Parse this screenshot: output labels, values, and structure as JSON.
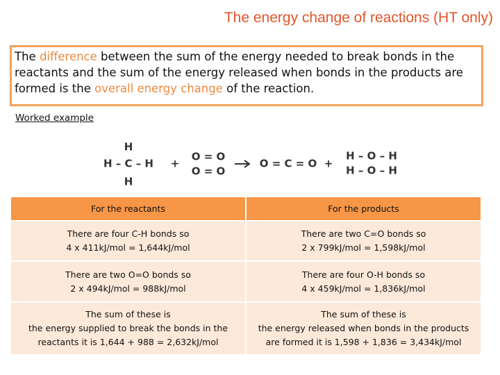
{
  "title": "The energy change of reactions (HT only)",
  "definition": [
    "The ",
    "difference",
    " between the sum of the energy needed to break bonds in the reactants and the sum of the energy released when bonds in the products are formed is the ",
    "overall energy change",
    " of the reaction."
  ],
  "worked_example": "Worked example",
  "equation": {
    "methane": [
      "H",
      "H – C – H",
      "H"
    ],
    "plus": [
      "+",
      "+"
    ],
    "oxygen": [
      "O = O",
      "O = O"
    ],
    "carbon_dioxide": "O = C = O",
    "water": [
      "H – O – H",
      "H – O – H"
    ]
  },
  "table": {
    "header": [
      "For the reactants",
      "For the products"
    ],
    "rows": [
      [
        [
          "There are four C-H bonds so",
          "4 x 411kJ/mol = 1,644kJ/mol"
        ],
        [
          "There are two C=O bonds so",
          "2 x 799kJ/mol = 1,598kJ/mol"
        ]
      ],
      [
        [
          "There are two O=O bonds so",
          "2 x  494kJ/mol = 988kJ/mol"
        ],
        [
          "There are four O-H bonds so",
          "4 x 459kJ/mol = 1,836kJ/mol"
        ]
      ],
      [
        [
          "The sum of these is",
          "the energy supplied to break the bonds in the",
          "reactants it is 1,644 + 988 = 2,632kJ/mol"
        ],
        [
          "The sum of these is",
          "the energy released when bonds in the products",
          "are formed  it is 1,598 + 1,836 = 3,434kJ/mol"
        ]
      ]
    ]
  }
}
